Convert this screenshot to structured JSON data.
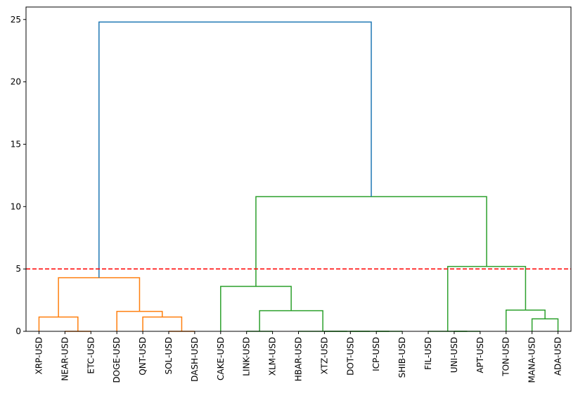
{
  "chart_data": {
    "type": "dendrogram",
    "title": "",
    "xlabel": "",
    "ylabel": "",
    "ylim": [
      0,
      26
    ],
    "yticks": [
      0,
      5,
      10,
      15,
      20,
      25
    ],
    "grid": false,
    "leaves": [
      "XRP-USD",
      "NEAR-USD",
      "ETC-USD",
      "DOGE-USD",
      "QNT-USD",
      "SOL-USD",
      "DASH-USD",
      "CAKE-USD",
      "LINK-USD",
      "XLM-USD",
      "HBAR-USD",
      "XTZ-USD",
      "DOT-USD",
      "ICP-USD",
      "SHIB-USD",
      "FIL-USD",
      "UNI-USD",
      "APT-USD",
      "TON-USD",
      "MANA-USD",
      "ADA-USD"
    ],
    "cut_line": {
      "y": 5,
      "color": "#ff0000",
      "style": "dashed"
    },
    "colors": {
      "cluster1": "#ff7f0e",
      "cluster2": "#2ca02c",
      "above": "#1f77b4"
    },
    "merges": [
      {
        "left": 1,
        "right": 2,
        "height": 0.0,
        "color": "cluster1"
      },
      {
        "left": 0,
        "right": "m0",
        "height": 1.15,
        "color": "cluster1"
      },
      {
        "left": 5,
        "right": 6,
        "height": 0.0,
        "color": "cluster1"
      },
      {
        "left": 4,
        "right": "m2",
        "height": 1.15,
        "color": "cluster1"
      },
      {
        "left": 3,
        "right": "m3",
        "height": 1.6,
        "color": "cluster1"
      },
      {
        "left": "m1",
        "right": "m4",
        "height": 4.3,
        "color": "cluster1"
      },
      {
        "left": 8,
        "right": 9,
        "height": 0.0,
        "color": "cluster2"
      },
      {
        "left": 13,
        "right": 14,
        "height": 0.0,
        "color": "cluster2"
      },
      {
        "left": 12,
        "right": "m7",
        "height": 0.0,
        "color": "cluster2"
      },
      {
        "left": 11,
        "right": "m8",
        "height": 0.0,
        "color": "cluster2"
      },
      {
        "left": 10,
        "right": "m9",
        "height": 0.0,
        "color": "cluster2"
      },
      {
        "left": "m6",
        "right": "m10",
        "height": 1.65,
        "color": "cluster2"
      },
      {
        "left": 7,
        "right": "m11",
        "height": 3.6,
        "color": "cluster2"
      },
      {
        "left": 16,
        "right": 17,
        "height": 0.0,
        "color": "cluster2"
      },
      {
        "left": 15,
        "right": "m13",
        "height": 0.0,
        "color": "cluster2"
      },
      {
        "left": 19,
        "right": 20,
        "height": 1.0,
        "color": "cluster2"
      },
      {
        "left": 18,
        "right": "m15",
        "height": 1.7,
        "color": "cluster2"
      },
      {
        "left": "m14",
        "right": "m16",
        "height": 5.2,
        "color": "cluster2"
      },
      {
        "left": "m12",
        "right": "m17",
        "height": 10.8,
        "color": "cluster2"
      },
      {
        "left": "m5",
        "right": "m18",
        "height": 24.8,
        "color": "above"
      }
    ]
  }
}
